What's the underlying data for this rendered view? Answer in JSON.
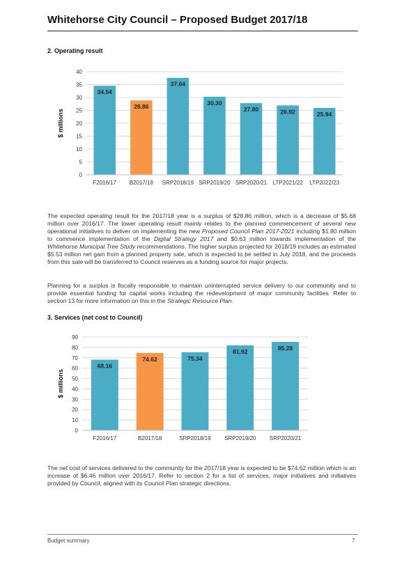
{
  "header": {
    "title": "Whitehorse City Council – Proposed Budget 2017/18"
  },
  "section2": {
    "heading": "2.   Operating result",
    "para1_parts": [
      "The expected operating result for the 2017/18 year is a surplus of $28.86 million, which is a decrease of $5.68 million over 2016/17. The lower operating result mainly relates to the planned commencement of several new operational initiatives to deliver on implementing the new ",
      "Proposed Council Plan 2017-2021",
      " including $1.80 million to commence implementation of the ",
      "Digital Strategy 2017",
      " and $0.63 million towards implementation of the ",
      "Whitehorse Municipal Tree Study",
      " recommendations. The higher surplus projected for 2018/19 includes an estimated $5.53 million net gain from a planned property sale, which is expected to be settled in July 2018, and the proceeds from this sale will be transferred to Council reserves as a funding source for major projects."
    ],
    "para2_parts": [
      "Planning for a surplus is fiscally responsible to maintain uninterrupted service delivery to our community and to provide essential funding for capital works including the redevelopment of major community facilities. Refer to section 13 for more information on this in the ",
      "Strategic Resource Plan",
      "."
    ]
  },
  "section3": {
    "heading": "3.   Services (net cost to Council)",
    "para_parts": [
      "The net cost of services delivered to the community for the 2017/18 year is expected to be $74.62 million which is an increase of $6.46 million over 2016/17. Refer to section 2 for a list of services, major initiatives and initiatives provided by Council, aligned with its Council Plan strategic directions."
    ]
  },
  "chart_data": [
    {
      "type": "bar",
      "categories": [
        "F2016/17",
        "B2017/18",
        "SRP2018/19",
        "SRP2019/20",
        "SRP2020/21",
        "LTP2021/22",
        "LTP2022/23"
      ],
      "values": [
        34.54,
        28.86,
        37.64,
        30.3,
        27.8,
        26.92,
        25.94
      ],
      "value_labels": [
        "34.54",
        "28.86",
        "37.64",
        "30.30",
        "27.80",
        "26.92",
        "25.94"
      ],
      "highlight_index": 1,
      "ylabel": "$ millions",
      "ylim": [
        0,
        40
      ],
      "yticks": [
        0,
        5,
        10,
        15,
        20,
        25,
        30,
        35,
        40
      ],
      "grid": true,
      "colors": {
        "bar": "#4bacc6",
        "highlight": "#f79646",
        "grid": "#d9d9d9"
      }
    },
    {
      "type": "bar",
      "categories": [
        "F2016/17",
        "B2017/18",
        "SRP2018/19",
        "SRP2019/20",
        "SRP2020/21"
      ],
      "values": [
        68.16,
        74.62,
        75.34,
        81.92,
        85.28
      ],
      "value_labels": [
        "68.16",
        "74.62",
        "75.34",
        "81.92",
        "85.28"
      ],
      "highlight_index": 1,
      "ylabel": "$ millions",
      "ylim": [
        0,
        90
      ],
      "yticks": [
        0,
        10,
        20,
        30,
        40,
        50,
        60,
        70,
        80,
        90
      ],
      "grid": true,
      "colors": {
        "bar": "#4bacc6",
        "highlight": "#f79646",
        "grid": "#d9d9d9"
      }
    }
  ],
  "footer": {
    "left": "Budget summary",
    "right": "7"
  }
}
